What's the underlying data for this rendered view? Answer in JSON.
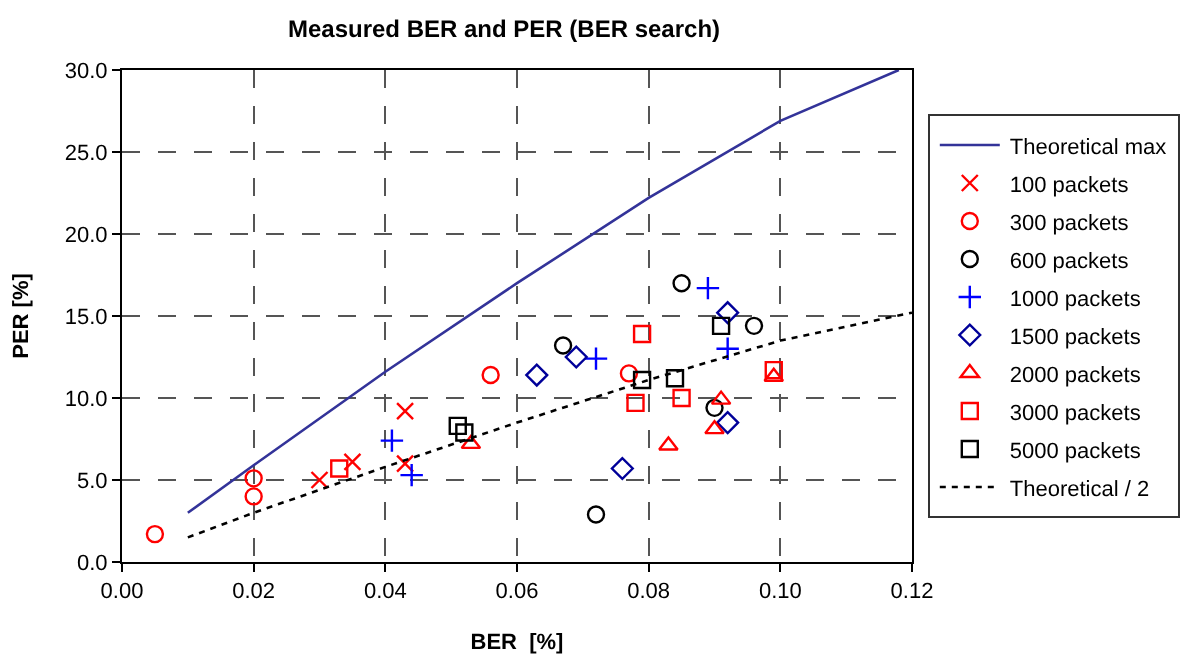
{
  "chart_data": {
    "type": "scatter",
    "title": "Measured BER and PER (BER search)",
    "xlabel": "BER  [%]",
    "ylabel": "PER [%]",
    "xlim": [
      0,
      0.12
    ],
    "xticks": [
      {
        "value": 0,
        "label": "0.00"
      },
      0.02,
      0.04,
      0.06,
      0.08,
      {
        "value": 0.1,
        "label": "0.10"
      },
      0.12
    ],
    "ylim": [
      0,
      30
    ],
    "yticks": [
      {
        "value": 0,
        "label": "0.0"
      },
      {
        "value": 5,
        "label": "5.0"
      },
      {
        "value": 10,
        "label": "10.0"
      },
      {
        "value": 15,
        "label": "15.0"
      },
      {
        "value": 20,
        "label": "20.0"
      },
      {
        "value": 25,
        "label": "25.0"
      },
      {
        "value": 30,
        "label": "30.0"
      }
    ],
    "grid": true,
    "legend": "right",
    "series": [
      {
        "name": "Theoretical max",
        "type": "line",
        "color": "#333399",
        "line_style": "solid",
        "marker": "none",
        "x": [
          0.01,
          0.02,
          0.04,
          0.06,
          0.08,
          0.1,
          0.118
        ],
        "values": [
          3.0,
          5.9,
          11.6,
          17.0,
          22.2,
          26.9,
          30.0
        ]
      },
      {
        "name": "100 packets",
        "marker": "cross",
        "color": "#ff0000",
        "x": [
          0.03,
          0.035,
          0.043,
          0.043
        ],
        "values": [
          5.0,
          6.1,
          9.2,
          6.0
        ]
      },
      {
        "name": "300 packets",
        "marker": "circle",
        "color": "#ff0000",
        "x": [
          0.005,
          0.02,
          0.02,
          0.056,
          0.077
        ],
        "values": [
          1.7,
          5.1,
          4.0,
          11.4,
          11.5
        ]
      },
      {
        "name": "600 packets",
        "marker": "circle",
        "color": "#000000",
        "x": [
          0.085,
          0.067,
          0.096,
          0.09,
          0.072
        ],
        "values": [
          17.0,
          13.2,
          14.4,
          9.4,
          2.9
        ]
      },
      {
        "name": "1000 packets",
        "marker": "plus",
        "color": "#0000ff",
        "x": [
          0.041,
          0.044,
          0.072,
          0.089,
          0.092
        ],
        "values": [
          7.4,
          5.3,
          12.4,
          16.7,
          13.0
        ]
      },
      {
        "name": "1500 packets",
        "marker": "diamond",
        "color": "#000099",
        "x": [
          0.063,
          0.069,
          0.076,
          0.092,
          0.092
        ],
        "values": [
          11.4,
          12.5,
          5.7,
          15.2,
          8.5
        ]
      },
      {
        "name": "2000 packets",
        "marker": "triangle",
        "color": "#ff0000",
        "x": [
          0.053,
          0.083,
          0.09,
          0.091,
          0.099
        ],
        "values": [
          7.2,
          7.1,
          8.1,
          9.9,
          11.3
        ]
      },
      {
        "name": "3000 packets",
        "marker": "square",
        "color": "#ff0000",
        "x": [
          0.033,
          0.079,
          0.078,
          0.085,
          0.099
        ],
        "values": [
          5.7,
          13.9,
          9.7,
          10.0,
          11.7
        ]
      },
      {
        "name": "5000 packets",
        "marker": "square",
        "color": "#000000",
        "x": [
          0.051,
          0.052,
          0.079,
          0.084,
          0.091
        ],
        "values": [
          8.3,
          7.9,
          11.1,
          11.2,
          14.4
        ]
      },
      {
        "name": "Theoretical / 2",
        "type": "line",
        "color": "#000000",
        "line_style": "dotted",
        "marker": "none",
        "x": [
          0.01,
          0.02,
          0.04,
          0.06,
          0.08,
          0.1,
          0.12
        ],
        "values": [
          1.5,
          3.0,
          5.8,
          8.5,
          11.1,
          13.5,
          15.2
        ]
      }
    ]
  }
}
